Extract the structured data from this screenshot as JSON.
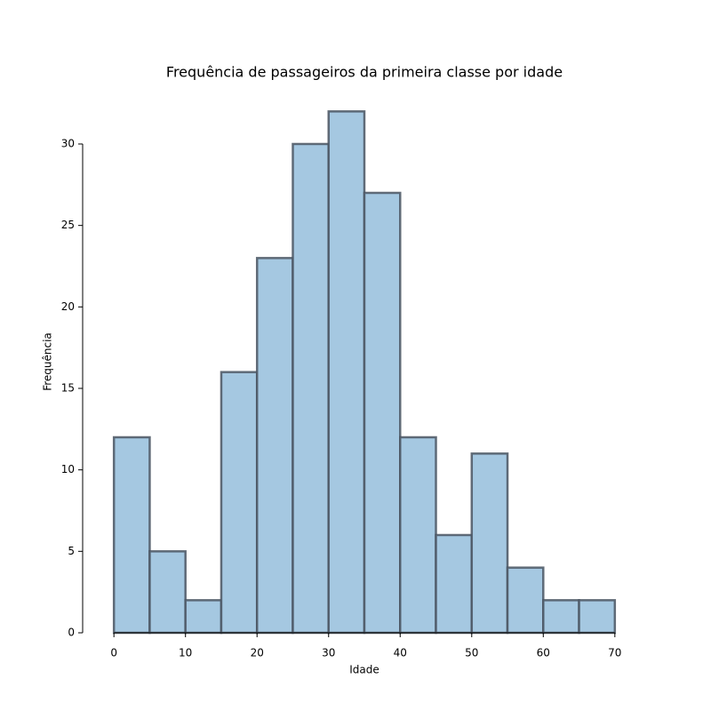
{
  "chart_data": {
    "type": "histogram",
    "title": "Frequência de passageiros da primeira classe por idade",
    "x_label": "Idade",
    "y_label": "Frequência",
    "bins": [
      0,
      5,
      10,
      15,
      20,
      25,
      30,
      35,
      40,
      45,
      50,
      55,
      60,
      65,
      70
    ],
    "values": [
      12,
      5,
      2,
      16,
      23,
      30,
      32,
      27,
      12,
      6,
      11,
      4,
      2,
      2
    ],
    "color": "#a5c8e1",
    "edge_color": "#4a5561",
    "xlim": [
      -3.5,
      73.5
    ],
    "ylim": [
      0,
      33.6
    ],
    "xticks": [
      0,
      10,
      20,
      30,
      40,
      50,
      60,
      70
    ],
    "yticks": [
      0,
      5,
      10,
      15,
      20,
      25,
      30
    ]
  }
}
